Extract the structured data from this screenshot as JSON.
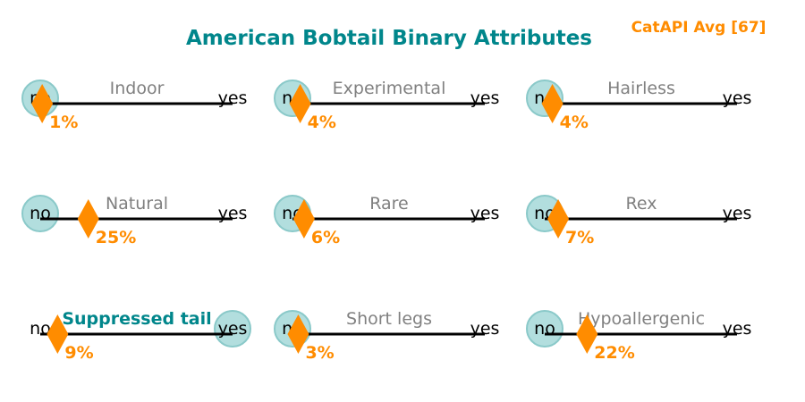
{
  "chart_data": {
    "type": "binary-scale",
    "title": "American Bobtail Binary Attributes",
    "annotation": "CatAPI Avg [67]",
    "scale": {
      "min_label": "no",
      "max_label": "yes",
      "min": 0,
      "max": 100
    },
    "attributes": [
      {
        "name": "Indoor",
        "value": 1,
        "value_label": "1%",
        "breed_value": "no",
        "highlight": false
      },
      {
        "name": "Experimental",
        "value": 4,
        "value_label": "4%",
        "breed_value": "no",
        "highlight": false
      },
      {
        "name": "Hairless",
        "value": 4,
        "value_label": "4%",
        "breed_value": "no",
        "highlight": false
      },
      {
        "name": "Natural",
        "value": 25,
        "value_label": "25%",
        "breed_value": "no",
        "highlight": false
      },
      {
        "name": "Rare",
        "value": 6,
        "value_label": "6%",
        "breed_value": "no",
        "highlight": false
      },
      {
        "name": "Rex",
        "value": 7,
        "value_label": "7%",
        "breed_value": "no",
        "highlight": false
      },
      {
        "name": "Suppressed tail",
        "value": 9,
        "value_label": "9%",
        "breed_value": "yes",
        "highlight": true
      },
      {
        "name": "Short legs",
        "value": 3,
        "value_label": "3%",
        "breed_value": "no",
        "highlight": false
      },
      {
        "name": "Hypoallergenic",
        "value": 22,
        "value_label": "22%",
        "breed_value": "no",
        "highlight": false
      }
    ]
  },
  "colors": {
    "title": "#00868b",
    "annotation": "#ff8c00",
    "marker": "#ff8c00",
    "circle_fill": "#b2dede",
    "circle_stroke": "#8ac9c9",
    "line": "#000000",
    "attr_label": "#808080",
    "attr_highlight": "#00868b"
  }
}
